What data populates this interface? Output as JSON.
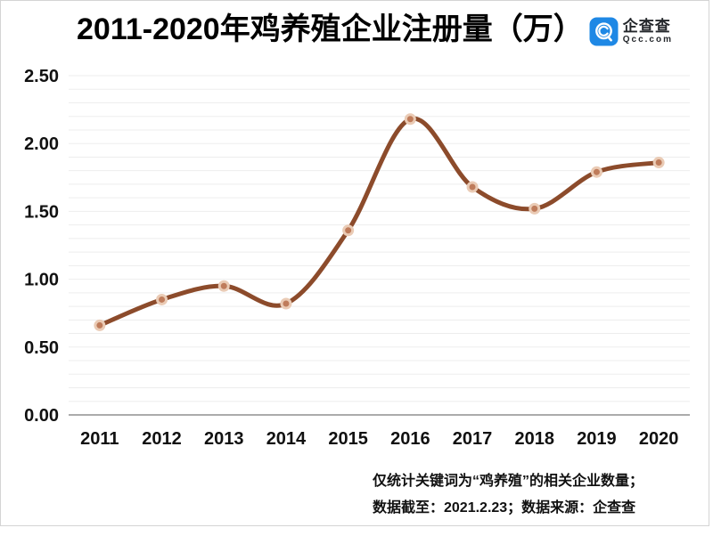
{
  "header": {
    "title": "2011-2020年鸡养殖企业注册量（万）",
    "logo": {
      "name": "企查查",
      "domain": "Qcc.com",
      "brand_color": "#1e88e5"
    }
  },
  "chart_data": {
    "type": "line",
    "title": "2011-2020年鸡养殖企业注册量（万）",
    "categories": [
      "2011",
      "2012",
      "2013",
      "2014",
      "2015",
      "2016",
      "2017",
      "2018",
      "2019",
      "2020"
    ],
    "series": [
      {
        "name": "鸡养殖企业注册量",
        "values": [
          0.66,
          0.85,
          0.95,
          0.82,
          1.36,
          2.18,
          1.68,
          1.52,
          1.79,
          1.86
        ]
      }
    ],
    "xlabel": "",
    "ylabel": "",
    "ylim": [
      0,
      2.5
    ],
    "y_tick_labels": [
      "0.00",
      "0.50",
      "1.00",
      "1.50",
      "2.00",
      "2.50"
    ],
    "y_tick_step": 0.5,
    "minor_grid_step": 0.1,
    "grid": "horizontal-only",
    "legend_position": "none",
    "smooth": true,
    "line_color": "#8c4b2b",
    "marker_fill": "#bf7c5b",
    "marker_stroke": "#eacbb5",
    "grid_color": "#ededed",
    "axis_color": "#ababab",
    "label_color": "#111111"
  },
  "footer": {
    "line1": "仅统计关键词为“鸡养殖”的相关企业数量；",
    "line2": "数据截至：2021.2.23；数据来源：企查查"
  }
}
